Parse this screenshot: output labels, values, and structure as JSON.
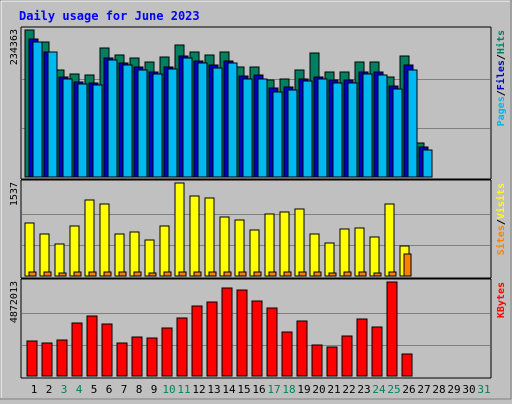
{
  "chart_data": {
    "type": "bar",
    "title": "Daily usage for June 2023",
    "categories": [
      "1",
      "2",
      "3",
      "4",
      "5",
      "6",
      "7",
      "8",
      "9",
      "10",
      "11",
      "12",
      "13",
      "14",
      "15",
      "16",
      "17",
      "18",
      "19",
      "20",
      "21",
      "22",
      "23",
      "24",
      "25",
      "26",
      "27",
      "28",
      "29",
      "30",
      "31"
    ],
    "weekend_days": [
      3,
      4,
      10,
      11,
      17,
      18,
      24,
      25,
      31
    ],
    "panels": [
      {
        "label_max": "234363",
        "ylim": [
          0,
          234363
        ],
        "legend": [
          "Pages",
          "/",
          "Files",
          "/",
          "Hits"
        ],
        "legend_colors": [
          "#00b8f0",
          "#000000",
          "#0000c8",
          "#000000",
          "#008060"
        ],
        "series": [
          {
            "name": "Hits",
            "color": "#008060",
            "values": [
              234363,
              216000,
              171000,
              164000,
              162000,
              205000,
              195000,
              190000,
              183000,
              192000,
              210000,
              200000,
              194000,
              200000,
              175000,
              176000,
              155000,
              156000,
              171000,
              198000,
              168000,
              168000,
              183000,
              183000,
              159000,
              193000,
              55000,
              0,
              0,
              0,
              0
            ]
          },
          {
            "name": "Files",
            "color": "#0000c8",
            "values": [
              220000,
              200000,
              159000,
              152000,
              150000,
              190000,
              182000,
              175000,
              168000,
              176000,
              193000,
              185000,
              178000,
              185000,
              161000,
              162000,
              142000,
              143000,
              157000,
              160000,
              154000,
              154000,
              168000,
              167000,
              145000,
              178000,
              48000,
              0,
              0,
              0,
              0
            ]
          },
          {
            "name": "Pages",
            "color": "#00b8f0",
            "values": [
              216000,
              200000,
              156000,
              148000,
              147000,
              187000,
              178000,
              171000,
              164000,
              172000,
              189000,
              182000,
              174000,
              182000,
              157000,
              157000,
              135000,
              139000,
              153000,
              156000,
              150000,
              150000,
              164000,
              163000,
              140000,
              171000,
              43000,
              0,
              0,
              0,
              0
            ]
          }
        ]
      },
      {
        "label_max": "1537",
        "ylim": [
          0,
          1537
        ],
        "legend": [
          "Sites",
          "/",
          "Visits"
        ],
        "legend_colors": [
          "#ff8000",
          "#000000",
          "#ffff00"
        ],
        "series": [
          {
            "name": "Visits",
            "color": "#ffff00",
            "values": [
              870,
              689,
              526,
              823,
              1248,
              1186,
              698,
              728,
              595,
              827,
              1537,
              1326,
              1294,
              972,
              920,
              758,
              1030,
              1054,
              1108,
              691,
              548,
              784,
              792,
              652,
              1186,
              490,
              0,
              0,
              0,
              0,
              0
            ]
          },
          {
            "name": "Sites",
            "color": "#ff8000",
            "values": [
              62,
              60,
              56,
              60,
              62,
              62,
              58,
              58,
              56,
              60,
              64,
              62,
              62,
              60,
              60,
              58,
              60,
              60,
              62,
              58,
              56,
              58,
              58,
              56,
              62,
              361,
              0,
              0,
              0,
              0,
              0
            ]
          }
        ]
      },
      {
        "label_max": "4872013",
        "ylim": [
          0,
          4872013
        ],
        "legend": [
          "KBytes"
        ],
        "legend_colors": [
          "#ff0000"
        ],
        "series": [
          {
            "name": "KBytes",
            "color": "#ff0000",
            "values": [
              1797000,
              1730000,
              1867000,
              2770000,
              3104000,
              2718000,
              1717000,
              2033000,
              1967000,
              2464000,
              3011000,
              3620000,
              3820000,
              4569000,
              4469000,
              3909000,
              3521000,
              2262000,
              2835000,
              1630000,
              1518000,
              2099000,
              2954000,
              2523000,
              4872013,
              1124000,
              0,
              0,
              0,
              0,
              0
            ]
          }
        ]
      }
    ]
  }
}
